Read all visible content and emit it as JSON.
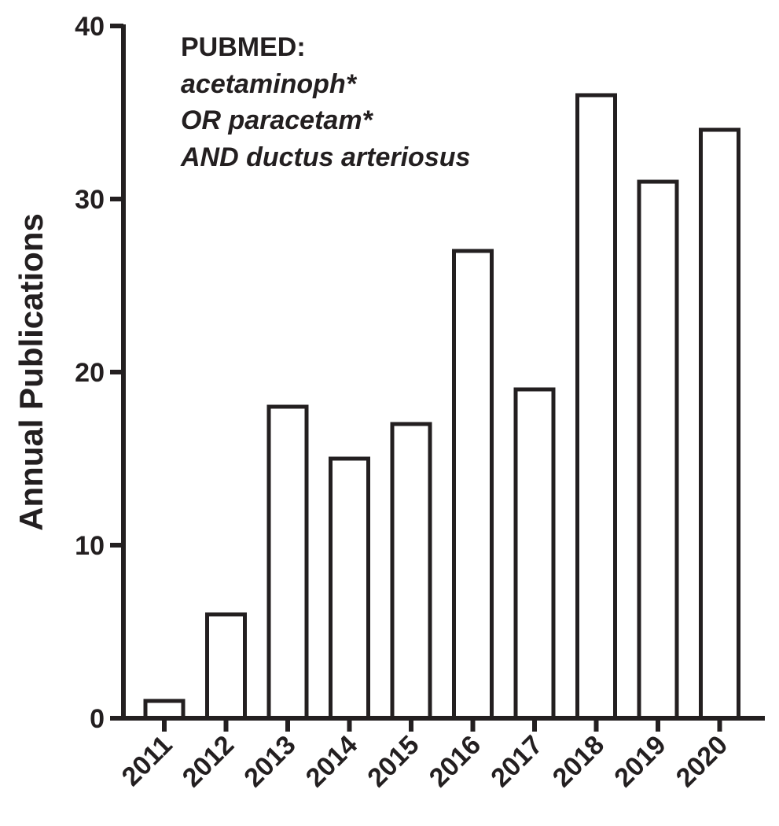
{
  "chart_data": {
    "type": "bar",
    "categories": [
      "2011",
      "2012",
      "2013",
      "2014",
      "2015",
      "2016",
      "2017",
      "2018",
      "2019",
      "2020"
    ],
    "values": [
      1,
      6,
      18,
      15,
      17,
      27,
      19,
      36,
      31,
      34
    ],
    "title": "",
    "xlabel": "",
    "ylabel": "Annual Publications",
    "ylim": [
      0,
      40
    ],
    "yticks": [
      "0",
      "10",
      "20",
      "30",
      "40"
    ],
    "annotation": {
      "lines": [
        "PUBMED:",
        "acetaminoph*",
        "OR paracetam*",
        "AND ductus arteriosus"
      ],
      "placement": "top-left"
    },
    "grid": false,
    "legend": "none",
    "colors": {
      "bar_fill": "#ffffff",
      "bar_stroke": "#231f20",
      "axis": "#231f20",
      "text": "#231f20"
    }
  }
}
